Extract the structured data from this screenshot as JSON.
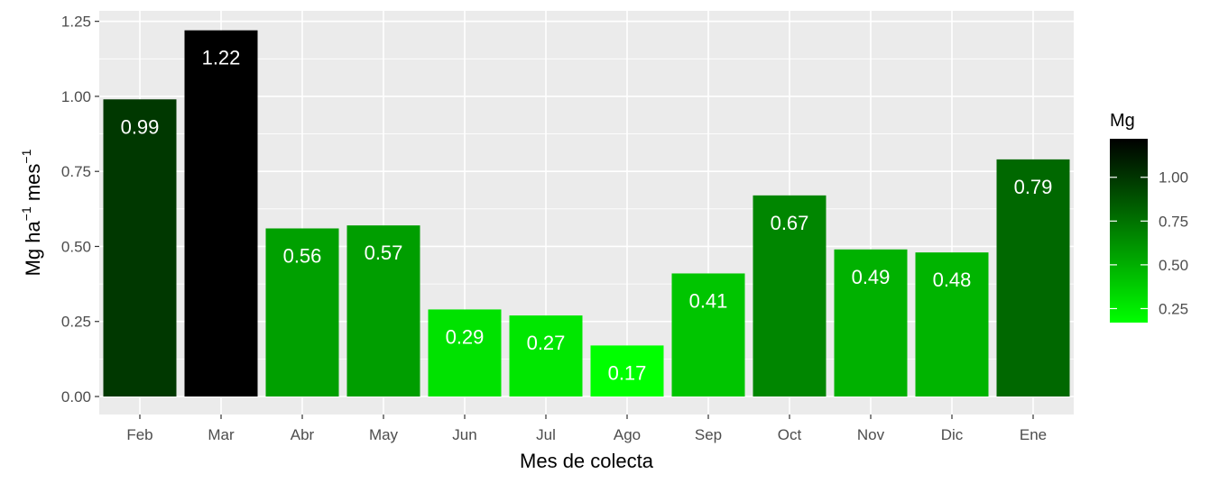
{
  "chart_data": {
    "type": "bar",
    "title": "",
    "xlabel": "Mes de colecta",
    "ylabel": {
      "parts": [
        "Mg  ha",
        "−1",
        " mes",
        "−1"
      ]
    },
    "categories": [
      "Feb",
      "Mar",
      "Abr",
      "May",
      "Jun",
      "Jul",
      "Ago",
      "Sep",
      "Oct",
      "Nov",
      "Dic",
      "Ene"
    ],
    "values": [
      0.99,
      1.22,
      0.56,
      0.57,
      0.29,
      0.27,
      0.17,
      0.41,
      0.67,
      0.49,
      0.48,
      0.79
    ],
    "data_labels": [
      "0.99",
      "1.22",
      "0.56",
      "0.57",
      "0.29",
      "0.27",
      "0.17",
      "0.41",
      "0.67",
      "0.49",
      "0.48",
      "0.79"
    ],
    "ylim": [
      0,
      1.25
    ],
    "yticks": [
      0.0,
      0.25,
      0.5,
      0.75,
      1.0,
      1.25
    ],
    "ytick_labels": [
      "0.00",
      "0.25",
      "0.50",
      "0.75",
      "1.00",
      "1.25"
    ],
    "grid": true,
    "panel_background": "#ebebeb",
    "grid_color": "#ffffff",
    "fill_scale": {
      "title": "Mg",
      "low_color": "#00ff00",
      "high_color": "#000000",
      "range": [
        0.17,
        1.22
      ],
      "ticks": [
        0.25,
        0.5,
        0.75,
        1.0
      ],
      "tick_labels": [
        "0.25",
        "0.50",
        "0.75",
        "1.00"
      ],
      "legend_position": "right"
    }
  }
}
